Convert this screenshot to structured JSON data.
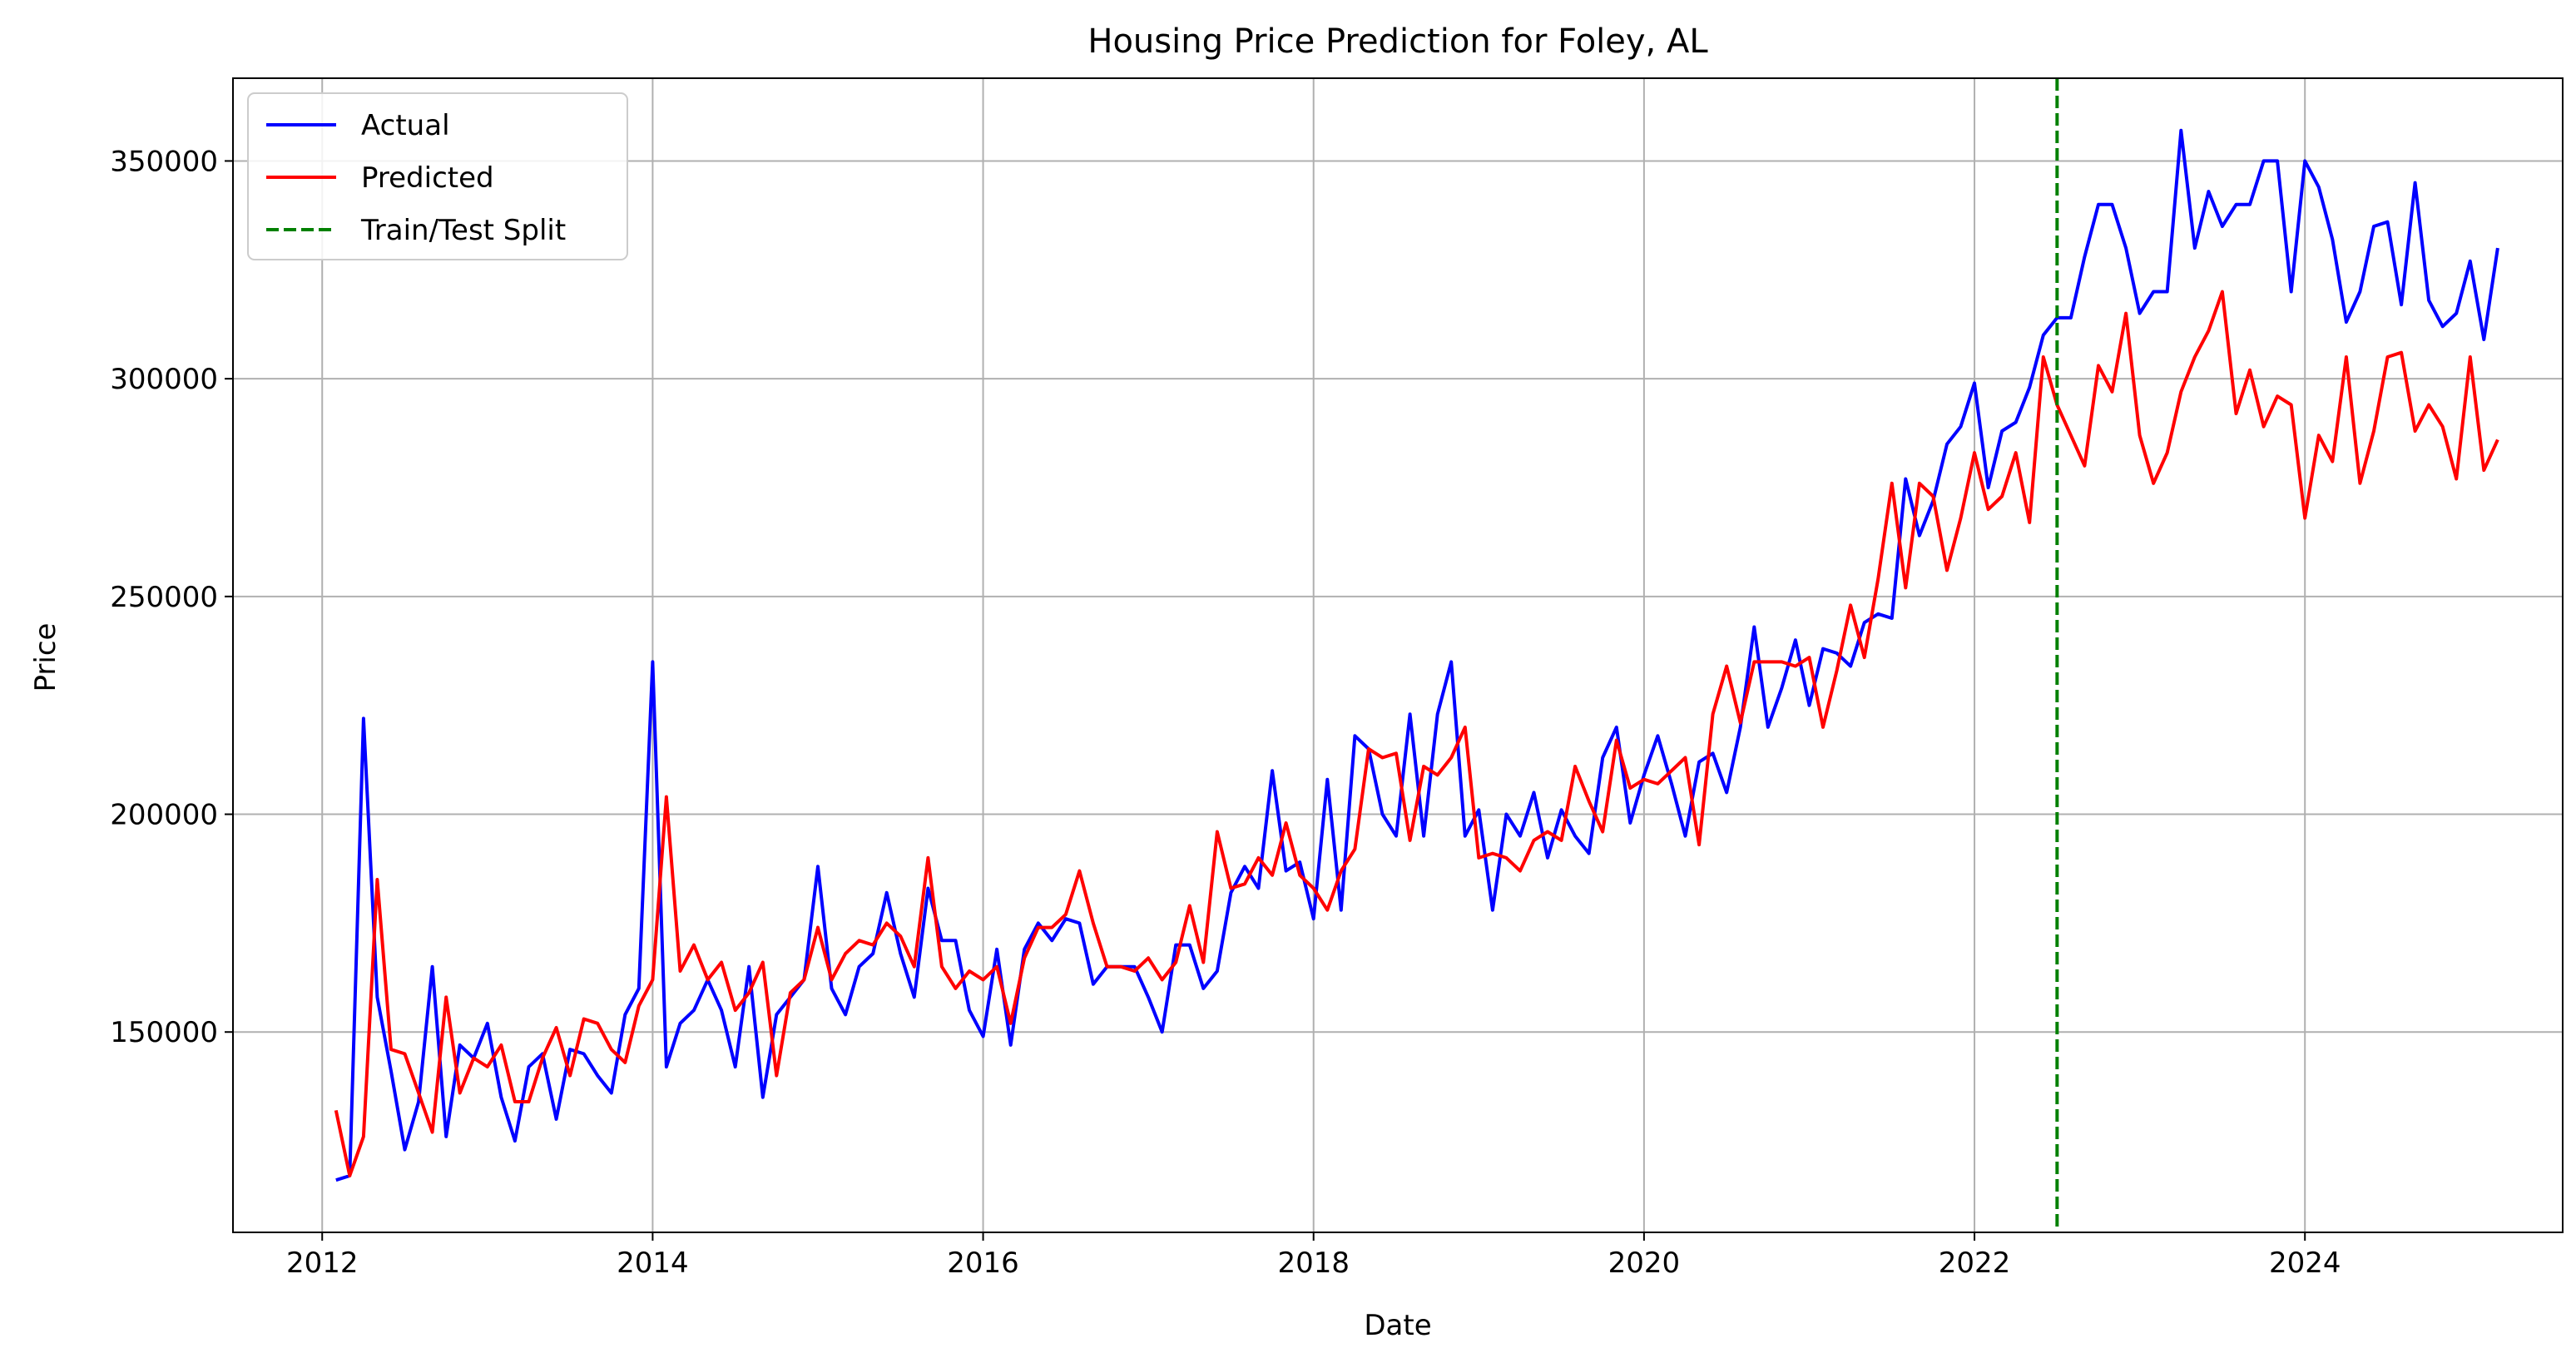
{
  "chart_data": {
    "type": "line",
    "title": "Housing Price Prediction for Foley, AL",
    "xlabel": "Date",
    "ylabel": "Price",
    "xlim": [
      2011.46,
      2025.56
    ],
    "ylim": [
      104000,
      369000
    ],
    "x_ticks": [
      2012,
      2014,
      2016,
      2018,
      2020,
      2022,
      2024
    ],
    "x_tick_labels": [
      "2012",
      "2014",
      "2016",
      "2018",
      "2020",
      "2022",
      "2024"
    ],
    "y_ticks": [
      150000,
      200000,
      250000,
      300000,
      350000
    ],
    "y_tick_labels": [
      "150000",
      "200000",
      "250000",
      "300000",
      "350000"
    ],
    "grid": true,
    "legend_position": "top-left",
    "series": [
      {
        "name": "Actual",
        "color": "#0000ff",
        "style": "solid",
        "start": "2012-02",
        "frequency": "monthly",
        "values": [
          116000,
          117000,
          222000,
          158000,
          141000,
          123000,
          134000,
          165000,
          126000,
          147000,
          144000,
          152000,
          135000,
          125000,
          142000,
          145000,
          130000,
          146000,
          145000,
          140000,
          136000,
          154000,
          160000,
          235000,
          142000,
          152000,
          155000,
          162000,
          155000,
          142000,
          165000,
          135000,
          154000,
          158000,
          162000,
          188000,
          160000,
          154000,
          165000,
          168000,
          182000,
          168000,
          158000,
          183000,
          171000,
          171000,
          155000,
          149000,
          169000,
          147000,
          169000,
          175000,
          171000,
          176000,
          175000,
          161000,
          165000,
          165000,
          165000,
          158000,
          150000,
          170000,
          170000,
          160000,
          164000,
          182000,
          188000,
          183000,
          210000,
          187000,
          189000,
          176000,
          208000,
          178000,
          218000,
          215000,
          200000,
          195000,
          223000,
          195000,
          223000,
          235000,
          195000,
          201000,
          178000,
          200000,
          195000,
          205000,
          190000,
          201000,
          195000,
          191000,
          213000,
          220000,
          198000,
          209000,
          218000,
          207000,
          195000,
          212000,
          214000,
          205000,
          220000,
          243000,
          220000,
          229000,
          240000,
          225000,
          238000,
          237000,
          234000,
          244000,
          246000,
          245000,
          277000,
          264000,
          272000,
          285000,
          289000,
          299000,
          275000,
          288000,
          290000,
          298000,
          310000,
          314000,
          314000,
          328000,
          340000,
          340000,
          330000,
          315000,
          320000,
          320000,
          357000,
          330000,
          343000,
          335000,
          340000,
          340000,
          350000,
          350000,
          320000,
          350000,
          344000,
          332000,
          313000,
          320000,
          335000,
          336000,
          317000,
          345000,
          318000,
          312000,
          315000,
          327000,
          309000,
          330000
        ]
      },
      {
        "name": "Predicted",
        "color": "#ff0000",
        "style": "solid",
        "start": "2012-02",
        "frequency": "monthly",
        "values": [
          132000,
          117000,
          126000,
          185000,
          146000,
          145000,
          136000,
          127000,
          158000,
          136000,
          144000,
          142000,
          147000,
          134000,
          134000,
          144000,
          151000,
          140000,
          153000,
          152000,
          146000,
          143000,
          156000,
          162000,
          204000,
          164000,
          170000,
          162000,
          166000,
          155000,
          159000,
          166000,
          140000,
          159000,
          162000,
          174000,
          162000,
          168000,
          171000,
          170000,
          175000,
          172000,
          165000,
          190000,
          165000,
          160000,
          164000,
          162000,
          165000,
          152000,
          167000,
          174000,
          174000,
          177000,
          187000,
          175000,
          165000,
          165000,
          164000,
          167000,
          162000,
          166000,
          179000,
          166000,
          196000,
          183000,
          184000,
          190000,
          186000,
          198000,
          186000,
          183000,
          178000,
          187000,
          192000,
          215000,
          213000,
          214000,
          194000,
          211000,
          209000,
          213000,
          220000,
          190000,
          191000,
          190000,
          187000,
          194000,
          196000,
          194000,
          211000,
          203000,
          196000,
          217000,
          206000,
          208000,
          207000,
          210000,
          213000,
          193000,
          223000,
          234000,
          221000,
          235000,
          235000,
          235000,
          234000,
          236000,
          220000,
          233000,
          248000,
          236000,
          254000,
          276000,
          252000,
          276000,
          273000,
          256000,
          268000,
          283000,
          270000,
          273000,
          283000,
          267000,
          305000,
          294000,
          287000,
          280000,
          303000,
          297000,
          315000,
          287000,
          276000,
          283000,
          297000,
          305000,
          311000,
          320000,
          292000,
          302000,
          289000,
          296000,
          294000,
          268000,
          287000,
          281000,
          305000,
          276000,
          288000,
          305000,
          306000,
          288000,
          294000,
          289000,
          277000,
          305000,
          279000,
          286000
        ]
      },
      {
        "name": "Train/Test Split",
        "color": "#008000",
        "style": "dashed",
        "x": "2022-07"
      }
    ]
  }
}
